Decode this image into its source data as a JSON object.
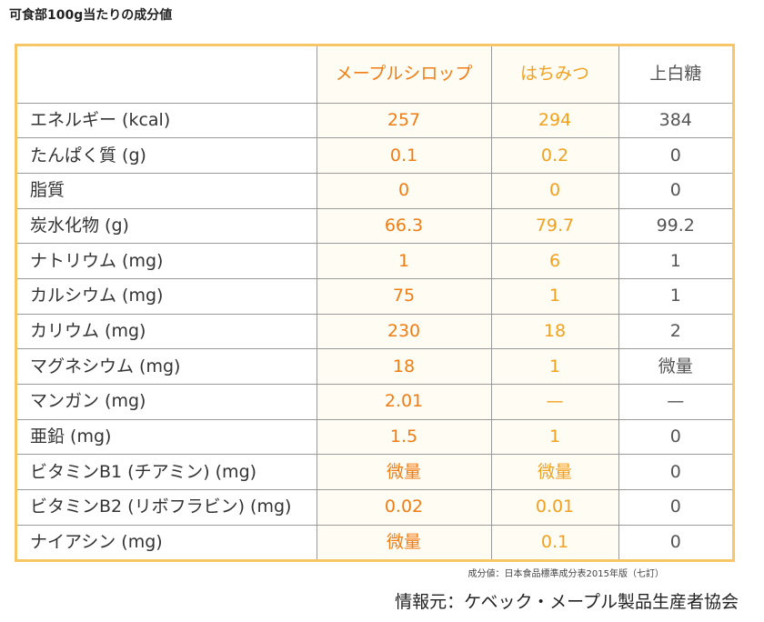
{
  "title": "可食部100g当たりの成分値",
  "table": {
    "headers": [
      "",
      "メープルシロップ",
      "はちみつ",
      "上白糖"
    ],
    "rows": [
      {
        "label": "エネルギー (kcal)",
        "maple": "257",
        "honey": "294",
        "sugar": "384"
      },
      {
        "label": "たんぱく質 (g)",
        "maple": "0.1",
        "honey": "0.2",
        "sugar": "0"
      },
      {
        "label": "脂質",
        "maple": "0",
        "honey": "0",
        "sugar": "0"
      },
      {
        "label": "炭水化物 (g)",
        "maple": "66.3",
        "honey": "79.7",
        "sugar": "99.2"
      },
      {
        "label": "ナトリウム (mg)",
        "maple": "1",
        "honey": "6",
        "sugar": "1"
      },
      {
        "label": "カルシウム (mg)",
        "maple": "75",
        "honey": "1",
        "sugar": "1"
      },
      {
        "label": "カリウム (mg)",
        "maple": "230",
        "honey": "18",
        "sugar": "2"
      },
      {
        "label": "マグネシウム (mg)",
        "maple": "18",
        "honey": "1",
        "sugar": "微量"
      },
      {
        "label": "マンガン (mg)",
        "maple": "2.01",
        "honey": "—",
        "sugar": "—"
      },
      {
        "label": "亜鉛 (mg)",
        "maple": "1.5",
        "honey": "1",
        "sugar": "0"
      },
      {
        "label": "ビタミンB1 (チアミン) (mg)",
        "maple": "微量",
        "honey": "微量",
        "sugar": "0"
      },
      {
        "label": "ビタミンB2 (リボフラビン) (mg)",
        "maple": "0.02",
        "honey": "0.01",
        "sugar": "0"
      },
      {
        "label": "ナイアシン (mg)",
        "maple": "微量",
        "honey": "0.1",
        "sugar": "0"
      }
    ]
  },
  "source_note": "成分値：日本食品標準成分表2015年版（七訂）",
  "credit": "情報元：ケベック・メープル製品生産者協会",
  "colors": {
    "maple": "#f07d14",
    "honey": "#f2a11e",
    "border": "#f7c667"
  }
}
